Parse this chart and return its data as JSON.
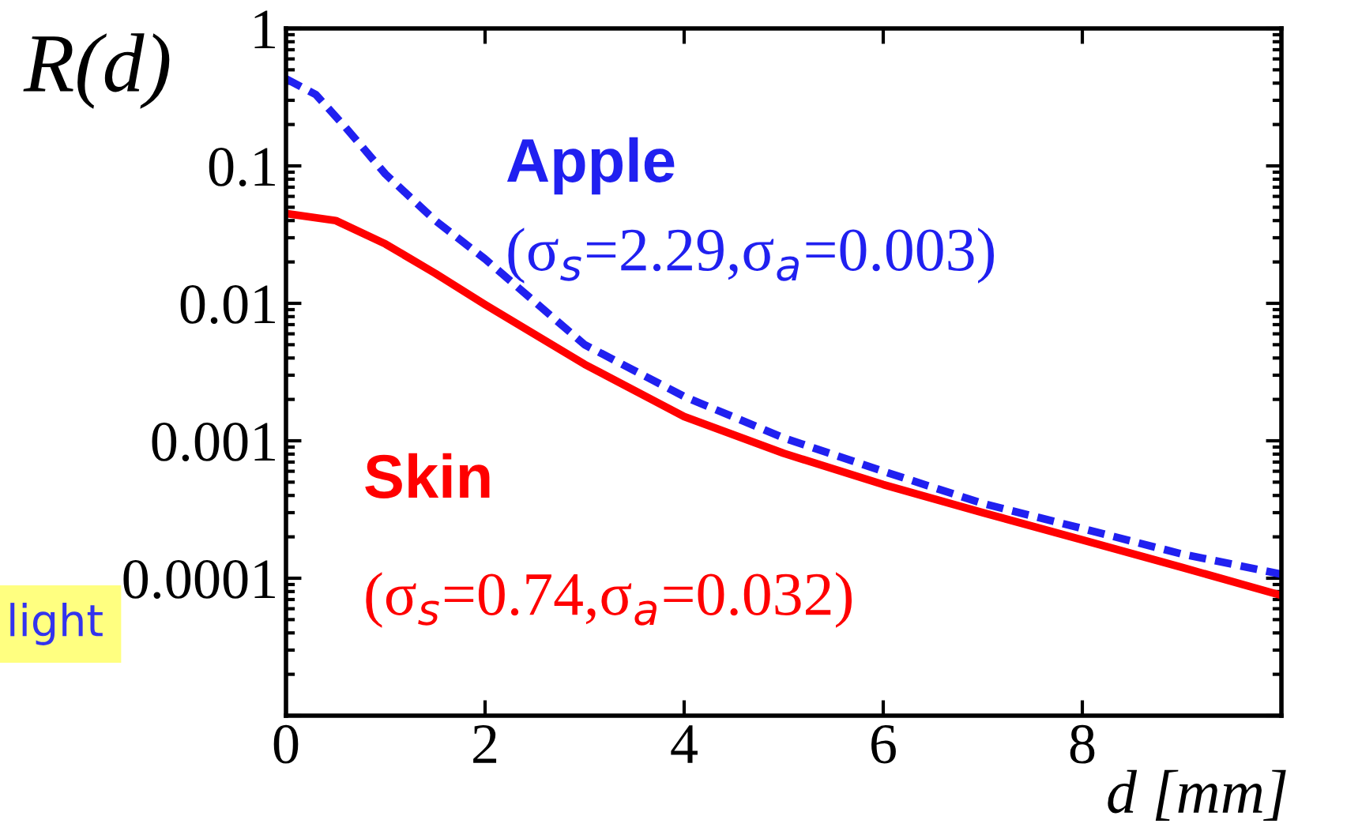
{
  "chart_data": {
    "type": "line",
    "ylabel": "R(d)",
    "xlabel": "d [mm]",
    "log": "y",
    "xlim": [
      0,
      10
    ],
    "xticks": [
      0,
      2,
      4,
      6,
      8
    ],
    "ylim": [
      1e-05,
      1
    ],
    "yticks": [
      {
        "value": 1e-05,
        "label": null
      },
      {
        "value": 0.0001,
        "label": "0.0001"
      },
      {
        "value": 0.001,
        "label": "0.001"
      },
      {
        "value": 0.01,
        "label": "0.01"
      },
      {
        "value": 0.1,
        "label": "0.1"
      },
      {
        "value": 1,
        "label": "1"
      }
    ],
    "grid": false,
    "legend": false,
    "series": [
      {
        "name": "Apple",
        "color": "#2020f0",
        "line_style": "dashed",
        "x": [
          0,
          0.3,
          0.6,
          1,
          1.5,
          2,
          3,
          4,
          5,
          6,
          7,
          8,
          9,
          10
        ],
        "values": [
          0.43,
          0.33,
          0.19,
          0.087,
          0.04,
          0.021,
          0.005,
          0.0021,
          0.00105,
          0.0006,
          0.00035,
          0.00023,
          0.00015,
          0.000107
        ]
      },
      {
        "name": "Skin",
        "color": "#ff0000",
        "line_style": "solid",
        "x": [
          0,
          0.5,
          1,
          1.5,
          2,
          3,
          4,
          5,
          6,
          7,
          8,
          9,
          10
        ],
        "values": [
          0.045,
          0.04,
          0.027,
          0.0165,
          0.0098,
          0.0036,
          0.0015,
          0.00081,
          0.00048,
          0.0003,
          0.00019,
          0.00012,
          7.5e-05
        ]
      }
    ],
    "annotations": [
      "(σ$_{s}$=2.29,σ$_{a}$=0.003)",
      "(σ$_{s}$=0.74,σ$_{a}$=0.032)",
      "light"
    ]
  }
}
